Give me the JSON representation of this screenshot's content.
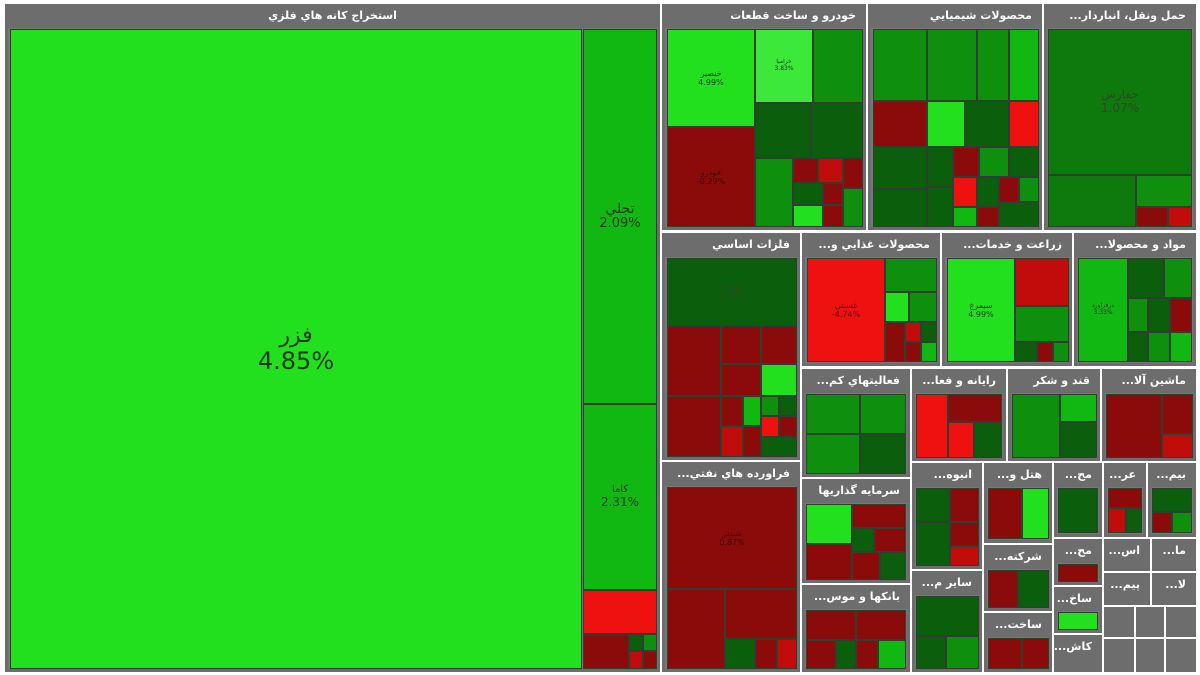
{
  "colors": {
    "bright_green": "#22e01e",
    "green": "#12b812",
    "mid_green": "#0e8f0e",
    "dark_green": "#0b5e0b",
    "bright_red": "#ef1010",
    "red": "#c20c0c",
    "dark_red": "#8b0a0a",
    "sector_gray": "#6d6d6d"
  },
  "sectors": {
    "metal_ores": {
      "title": "استخراج کانه هاي فلزي",
      "tiles": {
        "fozar": {
          "symbol": "فزر",
          "change": "4.85%"
        },
        "tajli": {
          "symbol": "تجلي",
          "change": "2.09%"
        },
        "kaama": {
          "symbol": "کاما",
          "change": "2.31%"
        },
        "small_red": {
          "symbol": "",
          "change": ""
        }
      }
    },
    "auto": {
      "title": "خودرو و ساخت قطعات",
      "tiles": {
        "khasapa": {
          "symbol": "خنصير",
          "change": "4.99%"
        },
        "khodro": {
          "symbol": "خودرو",
          "change": "-0.29%"
        },
        "t3": {
          "symbol": "خراميا",
          "change": "3.83%"
        }
      }
    },
    "chemical": {
      "title": "محصولات شيميايي"
    },
    "transport": {
      "title": "حمل ونقل، انباردار...",
      "tiles": {
        "hafars": {
          "symbol": "حفارس",
          "change": "1.07%"
        }
      }
    },
    "basic_metals": {
      "title": "فلزات اساسي",
      "tiles": {
        "foolad": {
          "symbol": "فولاد",
          "change": "0.57%"
        }
      }
    },
    "food": {
      "title": "محصولات غذايي و...",
      "tiles": {
        "ghesabet": {
          "symbol": "غسبتي",
          "change": "-4.74%"
        }
      }
    },
    "agri": {
      "title": "زراعت و خدمات...",
      "tiles": {
        "simorgh": {
          "symbol": "سيمرغ",
          "change": "4.99%"
        }
      }
    },
    "materials": {
      "title": "مواد و محصولا...",
      "tiles": {
        "t1": {
          "symbol": "درفراورد",
          "change": "3.33%"
        }
      }
    },
    "petroleum": {
      "title": "فراورده هاي نفتي...",
      "tiles": {
        "shebandar": {
          "symbol": "شبندر",
          "change": "0.87%"
        }
      }
    },
    "activities": {
      "title": "فعاليتهاي کم..."
    },
    "computer": {
      "title": "رايانه و فعا..."
    },
    "sugar": {
      "title": "قند و شکر"
    },
    "machinery": {
      "title": "ماشين آلا..."
    },
    "investment": {
      "title": "سرمايه گذاريها"
    },
    "mass": {
      "title": "انبوه..."
    },
    "hotel": {
      "title": "هتل و..."
    },
    "mah1": {
      "title": "مح..."
    },
    "ar": {
      "title": "عر..."
    },
    "bim": {
      "title": "بيم..."
    },
    "banks": {
      "title": "بانکها و موس..."
    },
    "other": {
      "title": "ساير م..."
    },
    "company": {
      "title": "شرکته..."
    },
    "mah2": {
      "title": "مح..."
    },
    "as": {
      "title": "اس..."
    },
    "ma": {
      "title": "ما..."
    },
    "construction": {
      "title": "ساخت..."
    },
    "sakh": {
      "title": "ساخ..."
    },
    "pim": {
      "title": "پيم..."
    },
    "la": {
      "title": "لا..."
    },
    "kash": {
      "title": "کاش..."
    }
  }
}
